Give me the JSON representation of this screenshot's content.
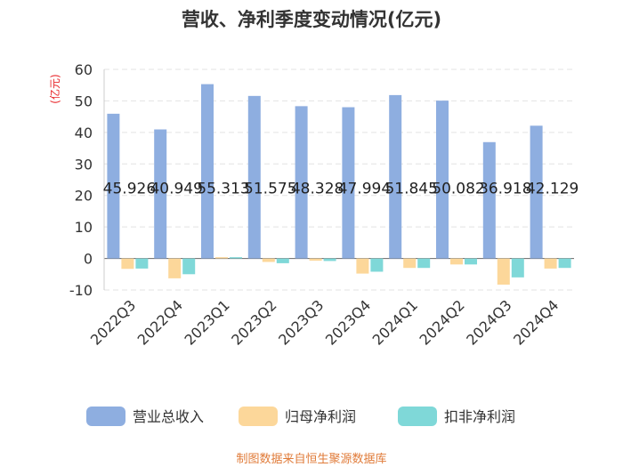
{
  "chart_data": {
    "type": "bar",
    "title": "营收、净利季度变动情况(亿元)",
    "unit_label": "(亿元)",
    "categories": [
      "2022Q3",
      "2022Q4",
      "2023Q1",
      "2023Q2",
      "2023Q3",
      "2023Q4",
      "2024Q1",
      "2024Q2",
      "2024Q3",
      "2024Q4"
    ],
    "series": [
      {
        "name": "营业总收入",
        "color": "#8eaee0",
        "values": [
          45.926,
          40.949,
          55.313,
          51.575,
          48.328,
          47.994,
          51.845,
          50.082,
          36.918,
          42.129
        ]
      },
      {
        "name": "归母净利润",
        "color": "#fcd79a",
        "values": [
          -3.3,
          -6.3,
          0.4,
          -1.1,
          -0.7,
          -4.8,
          -3.0,
          -1.9,
          -8.3,
          -3.2
        ]
      },
      {
        "name": "扣非净利润",
        "color": "#7fd8d8",
        "values": [
          -3.2,
          -5.0,
          0.4,
          -1.5,
          -0.8,
          -4.2,
          -3.0,
          -1.9,
          -6.0,
          -3.0
        ]
      }
    ],
    "data_labels": [
      "45.926",
      "40.949",
      "55.313",
      "51.575",
      "48.328",
      "47.994",
      "51.845",
      "50.082",
      "36.918",
      "42.129"
    ],
    "y_ticks": [
      "60",
      "50",
      "40",
      "30",
      "20",
      "10",
      "0",
      "-10"
    ],
    "ylim": [
      -10,
      60
    ],
    "grid": true,
    "legend_position": "bottom",
    "source": "制图数据来自恒生聚源数据库"
  }
}
